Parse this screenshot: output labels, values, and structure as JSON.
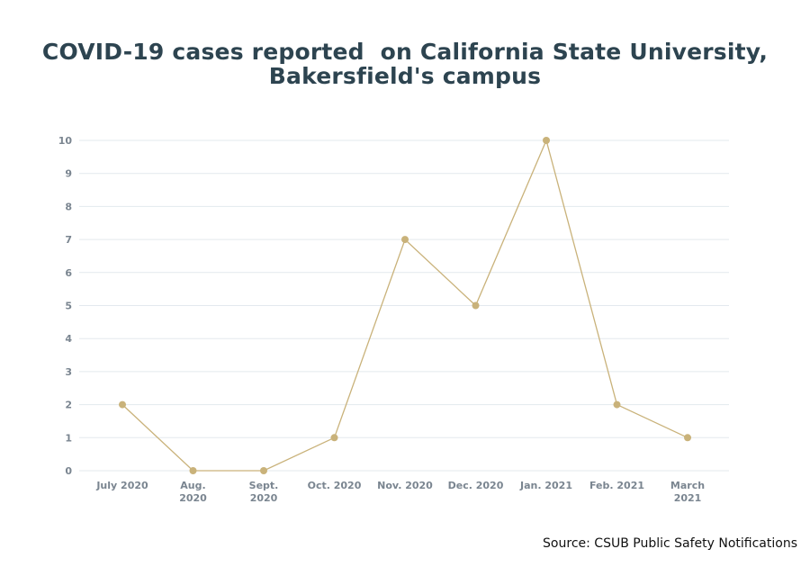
{
  "chart_data": {
    "type": "line",
    "title": [
      "COVID-19 cases reported  on California State University,",
      "Bakersfield's campus"
    ],
    "categories": [
      [
        "July 2020"
      ],
      [
        "Aug.",
        "2020"
      ],
      [
        "Sept.",
        "2020"
      ],
      [
        "Oct. 2020"
      ],
      [
        "Nov. 2020"
      ],
      [
        "Dec. 2020"
      ],
      [
        "Jan. 2021"
      ],
      [
        "Feb. 2021"
      ],
      [
        "March",
        "2021"
      ]
    ],
    "series": [
      {
        "values": [
          2,
          0,
          0,
          1,
          7,
          5,
          10,
          2,
          1
        ],
        "color": "#c9b27a"
      }
    ],
    "ylim": [
      0,
      10
    ],
    "yticks": [
      0,
      1,
      2,
      3,
      4,
      5,
      6,
      7,
      8,
      9,
      10
    ],
    "grid": true,
    "xlabel": "",
    "ylabel": ""
  },
  "source": "Source: CSUB Public Safety Notifications",
  "colors": {
    "title": "#2d4450",
    "line": "#c9b27a",
    "grid": "#e3e9ee",
    "ticks": "#7a8590"
  }
}
